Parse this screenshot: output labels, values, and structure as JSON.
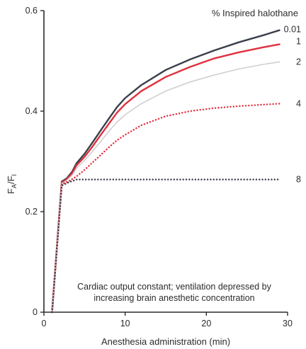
{
  "chart_data": {
    "type": "line",
    "title": "",
    "xlabel": "Anesthesia administration (min)",
    "ylabel_main": "F",
    "ylabel_sub1": "A",
    "ylabel_sep": "/F",
    "ylabel_sub2": "I",
    "xlim": [
      0,
      30
    ],
    "ylim": [
      0,
      0.6
    ],
    "x_ticks": [
      0,
      10,
      20,
      30
    ],
    "x_tick_labels": [
      "0",
      "10",
      "20",
      "30"
    ],
    "y_ticks": [
      0,
      0.2,
      0.4,
      0.6
    ],
    "y_tick_labels": [
      "0",
      "0.2",
      "0.4",
      "0.6"
    ],
    "grid": false,
    "legend_title": "% Inspired halothane",
    "annotation_line1": "Cardiac output constant; ventilation depressed by",
    "annotation_line2": "increasing brain anesthetic concentration",
    "series": [
      {
        "name": "0.01",
        "color": "#3a3f4a",
        "style": "solid",
        "points": [
          [
            1,
            0
          ],
          [
            2.2,
            0.26
          ],
          [
            2.8,
            0.266
          ],
          [
            3.5,
            0.28
          ],
          [
            4,
            0.296
          ],
          [
            5,
            0.315
          ],
          [
            6,
            0.338
          ],
          [
            7,
            0.362
          ],
          [
            8,
            0.385
          ],
          [
            9,
            0.408
          ],
          [
            10,
            0.426
          ],
          [
            12,
            0.452
          ],
          [
            15,
            0.482
          ],
          [
            18,
            0.503
          ],
          [
            21,
            0.521
          ],
          [
            24,
            0.537
          ],
          [
            27,
            0.551
          ],
          [
            29,
            0.561
          ]
        ]
      },
      {
        "name": "1",
        "color": "#e0303e",
        "style": "solid",
        "points": [
          [
            1,
            0
          ],
          [
            2.2,
            0.258
          ],
          [
            2.8,
            0.264
          ],
          [
            3.5,
            0.277
          ],
          [
            4,
            0.292
          ],
          [
            5,
            0.309
          ],
          [
            6,
            0.33
          ],
          [
            7,
            0.353
          ],
          [
            8,
            0.375
          ],
          [
            9,
            0.397
          ],
          [
            10,
            0.414
          ],
          [
            12,
            0.44
          ],
          [
            15,
            0.468
          ],
          [
            18,
            0.488
          ],
          [
            21,
            0.505
          ],
          [
            24,
            0.517
          ],
          [
            27,
            0.527
          ],
          [
            29,
            0.533
          ]
        ]
      },
      {
        "name": "2",
        "color": "#cfcfcf",
        "style": "solid",
        "points": [
          [
            1,
            0
          ],
          [
            2.2,
            0.256
          ],
          [
            2.8,
            0.262
          ],
          [
            3.5,
            0.273
          ],
          [
            4,
            0.286
          ],
          [
            5,
            0.302
          ],
          [
            6,
            0.32
          ],
          [
            7,
            0.34
          ],
          [
            8,
            0.36
          ],
          [
            9,
            0.378
          ],
          [
            10,
            0.393
          ],
          [
            12,
            0.415
          ],
          [
            15,
            0.44
          ],
          [
            18,
            0.458
          ],
          [
            21,
            0.472
          ],
          [
            24,
            0.484
          ],
          [
            27,
            0.493
          ],
          [
            29,
            0.498
          ]
        ]
      },
      {
        "name": "4",
        "color": "#e0303e",
        "style": "dotted",
        "points": [
          [
            1,
            0
          ],
          [
            2.2,
            0.255
          ],
          [
            3,
            0.26
          ],
          [
            4,
            0.27
          ],
          [
            5,
            0.283
          ],
          [
            6,
            0.298
          ],
          [
            7,
            0.313
          ],
          [
            8,
            0.328
          ],
          [
            9,
            0.342
          ],
          [
            10,
            0.353
          ],
          [
            12,
            0.372
          ],
          [
            15,
            0.39
          ],
          [
            18,
            0.4
          ],
          [
            21,
            0.406
          ],
          [
            24,
            0.41
          ],
          [
            27,
            0.413
          ],
          [
            29,
            0.415
          ]
        ]
      },
      {
        "name": "8",
        "color": "#3a3f4a",
        "style": "dotted",
        "points": [
          [
            1,
            0
          ],
          [
            2.2,
            0.252
          ],
          [
            3,
            0.258
          ],
          [
            4,
            0.264
          ],
          [
            6,
            0.264
          ],
          [
            10,
            0.264
          ],
          [
            15,
            0.264
          ],
          [
            20,
            0.264
          ],
          [
            25,
            0.264
          ],
          [
            29,
            0.264
          ]
        ]
      }
    ]
  }
}
